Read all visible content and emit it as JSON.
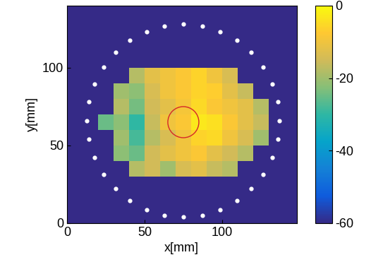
{
  "chart_data": {
    "type": "heatmap",
    "xlabel": "x[mm]",
    "ylabel": "y[mm]",
    "xlim": [
      0,
      148
    ],
    "ylim": [
      0,
      140
    ],
    "xticks": [
      0,
      50,
      100
    ],
    "yticks": [
      0,
      50,
      100
    ],
    "x": [
      5,
      15,
      25,
      35,
      45,
      55,
      65,
      75,
      85,
      95,
      105,
      115,
      125,
      135,
      145
    ],
    "y": [
      5,
      15,
      25,
      35,
      45,
      55,
      65,
      75,
      85,
      95,
      105,
      115,
      125,
      135
    ],
    "cells": [
      [
        -60,
        -60,
        -60,
        -60,
        -60,
        -60,
        -60,
        -60,
        -60,
        -60,
        -60,
        -60,
        -60,
        -60,
        -60
      ],
      [
        -60,
        -60,
        -60,
        -60,
        -60,
        -60,
        -60,
        -60,
        -60,
        -60,
        -60,
        -60,
        -60,
        -60,
        -60
      ],
      [
        -60,
        -60,
        -60,
        -60,
        -60,
        -60,
        -60,
        -60,
        -60,
        -60,
        -60,
        -60,
        -60,
        -60,
        -60
      ],
      [
        -60,
        -60,
        -60,
        -60,
        -18,
        -15,
        -20,
        -14,
        -12,
        -16,
        -18,
        -60,
        -60,
        -60,
        -60
      ],
      [
        -60,
        -60,
        -60,
        -22,
        -25,
        -15,
        -12,
        -10,
        -8,
        -12,
        -15,
        -18,
        -60,
        -60,
        -60
      ],
      [
        -60,
        -60,
        -60,
        -20,
        -28,
        -18,
        -14,
        -10,
        -6,
        -5,
        -10,
        -14,
        -20,
        -60,
        -60
      ],
      [
        -60,
        -60,
        -25,
        -22,
        -30,
        -16,
        -10,
        -8,
        -3,
        -4,
        -8,
        -12,
        -16,
        -60,
        -60
      ],
      [
        -60,
        -60,
        -60,
        -18,
        -24,
        -15,
        -12,
        -9,
        -5,
        -8,
        -10,
        -12,
        -18,
        -60,
        -60
      ],
      [
        -60,
        -60,
        -60,
        -20,
        -22,
        -14,
        -10,
        -8,
        -6,
        -7,
        -12,
        -16,
        -60,
        -60,
        -60
      ],
      [
        -60,
        -60,
        -60,
        -60,
        -18,
        -12,
        -10,
        -8,
        -6,
        -10,
        -14,
        -60,
        -60,
        -60,
        -60
      ],
      [
        -60,
        -60,
        -60,
        -60,
        -60,
        -60,
        -60,
        -60,
        -60,
        -60,
        -60,
        -60,
        -60,
        -60,
        -60
      ],
      [
        -60,
        -60,
        -60,
        -60,
        -60,
        -60,
        -60,
        -60,
        -60,
        -60,
        -60,
        -60,
        -60,
        -60,
        -60
      ],
      [
        -60,
        -60,
        -60,
        -60,
        -60,
        -60,
        -60,
        -60,
        -60,
        -60,
        -60,
        -60,
        -60,
        -60,
        -60
      ],
      [
        -60,
        -60,
        -60,
        -60,
        -60,
        -60,
        -60,
        -60,
        -60,
        -60,
        -60,
        -60,
        -60,
        -60,
        -60
      ]
    ],
    "colorbar": {
      "lim": [
        -60,
        0
      ],
      "ticks": [
        -60,
        -40,
        -20,
        0
      ]
    },
    "sensors": {
      "color": "#ffffff",
      "x": [
        137,
        135.8,
        132.3,
        126.5,
        118.8,
        109.5,
        98.7,
        87.1,
        75,
        62.9,
        51.3,
        40.5,
        31.2,
        23.5,
        17.7,
        14.2,
        13,
        14.2,
        17.7,
        23.5,
        31.2,
        40.5,
        51.3,
        62.9,
        75,
        87.1,
        98.7,
        109.5,
        118.8,
        126.5,
        132.3,
        135.8
      ],
      "y": [
        66,
        78.1,
        89.7,
        100.5,
        109.8,
        117.5,
        123.3,
        126.8,
        128,
        126.8,
        123.3,
        117.5,
        109.8,
        100.5,
        89.7,
        78.1,
        66,
        53.9,
        42.3,
        31.5,
        22.2,
        14.5,
        8.7,
        5.2,
        4,
        5.2,
        8.7,
        14.5,
        22.2,
        31.5,
        42.3,
        53.9
      ]
    },
    "circle": {
      "center": [
        75,
        65
      ],
      "radius": 10,
      "color": "#d62728"
    }
  }
}
